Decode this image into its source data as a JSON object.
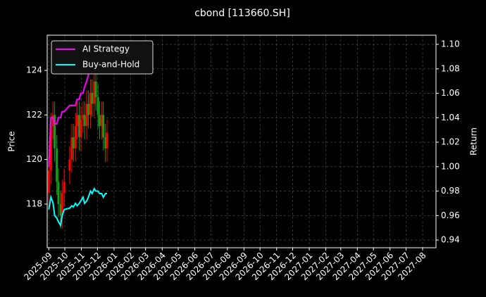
{
  "chart_data": {
    "type": "candlestick",
    "title": "cbond [113660.SH]",
    "y_label": "Price",
    "y2_label": "Return",
    "x": [
      "2025-09-01",
      "2025-09-05",
      "2025-09-09",
      "2025-09-12",
      "2025-09-16",
      "2025-09-19",
      "2025-09-23",
      "2025-09-26",
      "2025-09-30",
      "2025-10-10",
      "2025-10-14",
      "2025-10-17",
      "2025-10-21",
      "2025-10-24",
      "2025-10-28",
      "2025-10-31",
      "2025-11-04",
      "2025-11-07",
      "2025-11-11",
      "2025-11-14",
      "2025-11-18",
      "2025-11-21",
      "2025-11-25",
      "2025-11-28",
      "2025-12-02",
      "2025-12-05",
      "2025-12-09",
      "2025-12-12",
      "2025-12-16",
      "2025-12-19"
    ],
    "open": [
      118.5,
      119.5,
      121.5,
      122,
      120.5,
      119,
      118,
      117.5,
      118.5,
      119.5,
      120,
      121,
      120.5,
      121.5,
      122,
      121,
      121.8,
      122,
      121.5,
      122.5,
      122,
      123,
      122.5,
      123.5,
      122.8,
      122,
      121.5,
      122,
      121,
      120.5
    ],
    "high": [
      120.1,
      122.1,
      122.6,
      122.6,
      121.1,
      119.6,
      118.6,
      119.1,
      119.6,
      120.6,
      121.6,
      121.6,
      122.1,
      122.6,
      122.6,
      122.4,
      122.6,
      122.6,
      123.1,
      123.1,
      123.6,
      123.6,
      124.1,
      124.1,
      123.4,
      122.6,
      122.6,
      122.6,
      121.6,
      121.8
    ],
    "low": [
      117.9,
      118.9,
      120.9,
      119.9,
      118.4,
      117.4,
      116.9,
      116.9,
      117.9,
      118.9,
      119.4,
      119.9,
      119.9,
      120.9,
      120.4,
      120.4,
      121.2,
      120.9,
      120.9,
      121.4,
      121.4,
      121.9,
      121.9,
      122.2,
      121.4,
      120.9,
      120.9,
      120.4,
      119.9,
      119.9
    ],
    "close": [
      119.5,
      121.5,
      122,
      120.5,
      119,
      118,
      117.5,
      118.5,
      119,
      120,
      121,
      120.5,
      121.5,
      122,
      121,
      121.8,
      122,
      121.5,
      122.5,
      122,
      123,
      122.5,
      123.5,
      122.8,
      122,
      121.5,
      122,
      121,
      120.5,
      121.2
    ],
    "up_color": "#ff0000",
    "down_color": "#1a9a1a",
    "series": [
      {
        "name": "AI Strategy",
        "color": "#ff00ff",
        "axis": "y2",
        "values": [
          1.0,
          1.04,
          1.04,
          1.035,
          1.035,
          1.04,
          1.04,
          1.045,
          1.045,
          1.05,
          1.05,
          1.05,
          1.05,
          1.055,
          1.055,
          1.06,
          1.06,
          1.065,
          1.07,
          1.075,
          1.08,
          1.085,
          1.09,
          1.095,
          1.095,
          null,
          null,
          null,
          null,
          null
        ]
      },
      {
        "name": "Buy-and-Hold",
        "color": "#00ffff",
        "axis": "y2",
        "values": [
          0.965,
          0.975,
          0.97,
          0.96,
          0.958,
          0.955,
          0.952,
          0.96,
          0.965,
          0.966,
          0.968,
          0.967,
          0.97,
          0.968,
          0.97,
          0.972,
          0.975,
          0.97,
          0.972,
          0.975,
          0.98,
          0.978,
          0.982,
          0.98,
          0.98,
          0.978,
          0.978,
          0.975,
          0.978,
          0.978
        ]
      }
    ],
    "xlim": [
      "2025-08-29",
      "2027-08-26"
    ],
    "xticks": [
      "2025-09",
      "2025-10",
      "2025-11",
      "2025-12",
      "2026-01",
      "2026-02",
      "2026-03",
      "2026-04",
      "2026-05",
      "2026-06",
      "2026-07",
      "2026-08",
      "2026-09",
      "2026-10",
      "2026-11",
      "2026-12",
      "2027-01",
      "2027-02",
      "2027-03",
      "2027-04",
      "2027-05",
      "2027-06",
      "2027-07",
      "2027-08"
    ],
    "ylim": [
      116.04,
      125.58
    ],
    "yticks": [
      118,
      120,
      122,
      124
    ],
    "y2lim": [
      0.9337,
      1.1075
    ],
    "y2ticks": [
      0.94,
      0.96,
      0.98,
      {
        "value": 1.0,
        "label": "1.00"
      },
      1.02,
      1.04,
      1.06,
      1.08,
      {
        "value": 1.1,
        "label": "1.10"
      }
    ],
    "grid": true,
    "legend": "upper left"
  }
}
